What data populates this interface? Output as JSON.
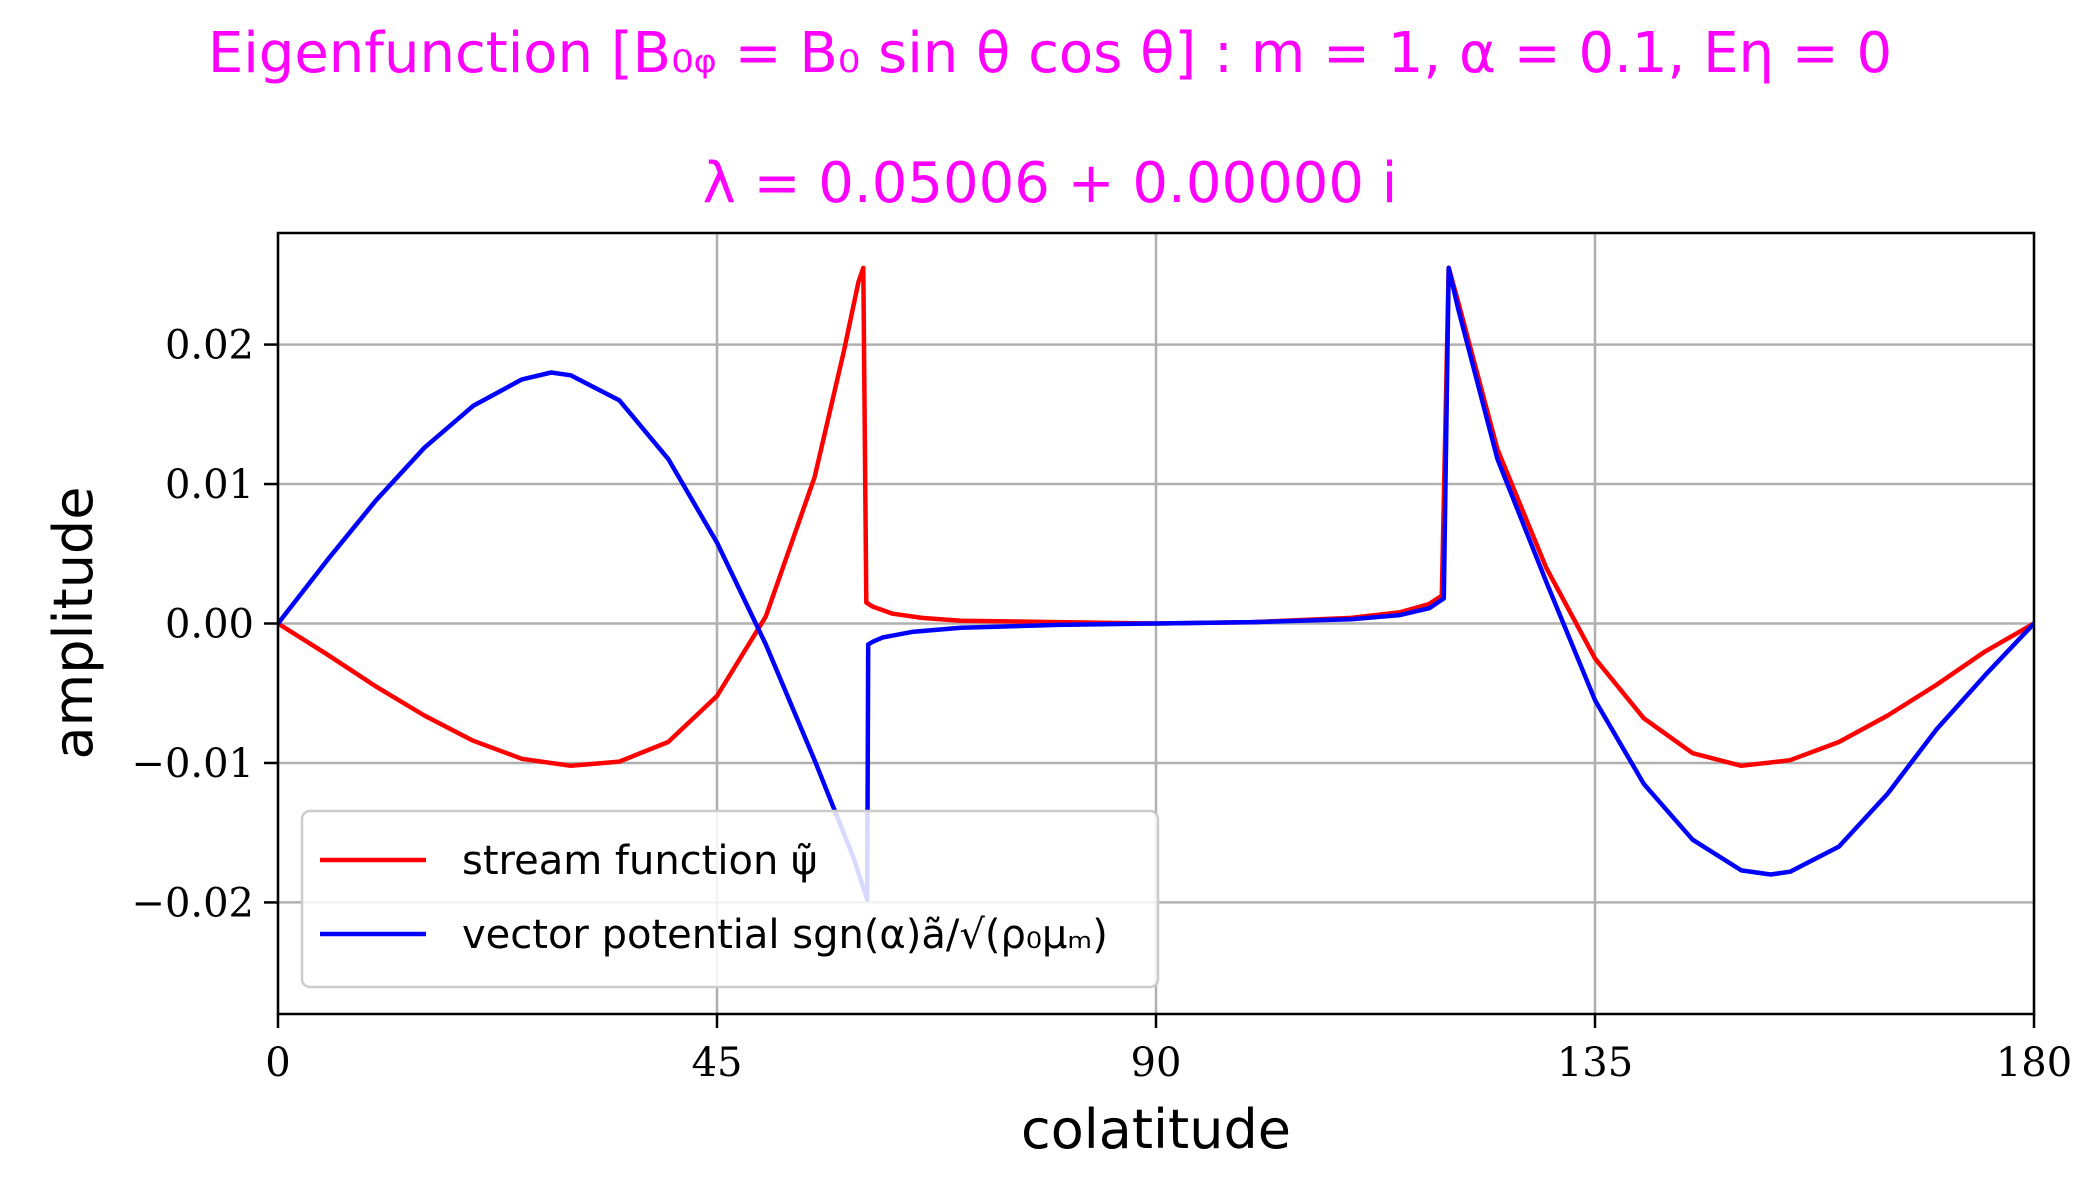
{
  "chart_data": {
    "type": "line",
    "title": "Eigenfunction [B₀ᵩ = B₀ sin θ cos θ] : m = 1, α = 0.1, Eη = 0",
    "subtitle": "λ = 0.05006 + 0.00000 i",
    "xlabel": "colatitude",
    "ylabel": "amplitude",
    "xlim": [
      0,
      180
    ],
    "ylim": [
      -0.028,
      0.028
    ],
    "xticks": [
      0,
      45,
      90,
      135,
      180
    ],
    "xtick_labels": [
      "0",
      "45",
      "90",
      "135",
      "180"
    ],
    "yticks": [
      -0.02,
      -0.01,
      0.0,
      0.01,
      0.02
    ],
    "ytick_labels": [
      "−0.02",
      "−0.01",
      "0.00",
      "0.01",
      "0.02"
    ],
    "grid": true,
    "legend_position": "lower-left",
    "series": [
      {
        "name": "stream function ψ̃",
        "color": "#ff0000",
        "x": [
          0,
          5,
          10,
          15,
          20,
          25,
          30,
          35,
          40,
          45,
          50,
          55,
          58,
          59.5,
          60,
          60.3,
          61,
          63,
          66,
          70,
          80,
          90,
          100,
          110,
          115,
          118,
          119.3,
          120,
          121,
          125,
          130,
          135,
          140,
          145,
          150,
          155,
          160,
          165,
          170,
          175,
          180
        ],
        "y": [
          0.0,
          -0.0022,
          -0.0045,
          -0.0066,
          -0.0084,
          -0.0097,
          -0.0102,
          -0.0099,
          -0.0085,
          -0.0052,
          0.0005,
          0.0105,
          0.0195,
          0.0245,
          0.0255,
          0.0015,
          0.0012,
          0.0007,
          0.0004,
          0.0002,
          0.0001,
          0.0,
          0.0001,
          0.0004,
          0.0008,
          0.0014,
          0.002,
          0.0255,
          0.023,
          0.0125,
          0.004,
          -0.0025,
          -0.0068,
          -0.0093,
          -0.0102,
          -0.0098,
          -0.0085,
          -0.0066,
          -0.0044,
          -0.002,
          0.0
        ]
      },
      {
        "name": "vector potential sgn(α)ã/√(ρ₀μₘ)",
        "color": "#0000ff",
        "x": [
          0,
          5,
          10,
          15,
          20,
          25,
          28,
          30,
          35,
          40,
          45,
          50,
          55,
          59,
          60.4,
          60.5,
          61,
          62,
          65,
          70,
          80,
          90,
          100,
          110,
          115,
          118,
          119.5,
          120,
          121,
          125,
          130,
          135,
          140,
          145,
          150,
          153,
          155,
          160,
          165,
          170,
          175,
          180
        ],
        "y": [
          0.0,
          0.0045,
          0.0088,
          0.0126,
          0.0156,
          0.0175,
          0.018,
          0.0178,
          0.016,
          0.0118,
          0.0058,
          -0.0015,
          -0.0098,
          -0.0168,
          -0.0198,
          -0.0015,
          -0.0013,
          -0.001,
          -0.0006,
          -0.0003,
          -0.0001,
          0.0,
          0.0001,
          0.0003,
          0.0006,
          0.0011,
          0.0018,
          0.0255,
          0.0225,
          0.0118,
          0.003,
          -0.0055,
          -0.0115,
          -0.0155,
          -0.0177,
          -0.018,
          -0.0178,
          -0.016,
          -0.0122,
          -0.0076,
          -0.0037,
          0.0
        ]
      }
    ]
  }
}
